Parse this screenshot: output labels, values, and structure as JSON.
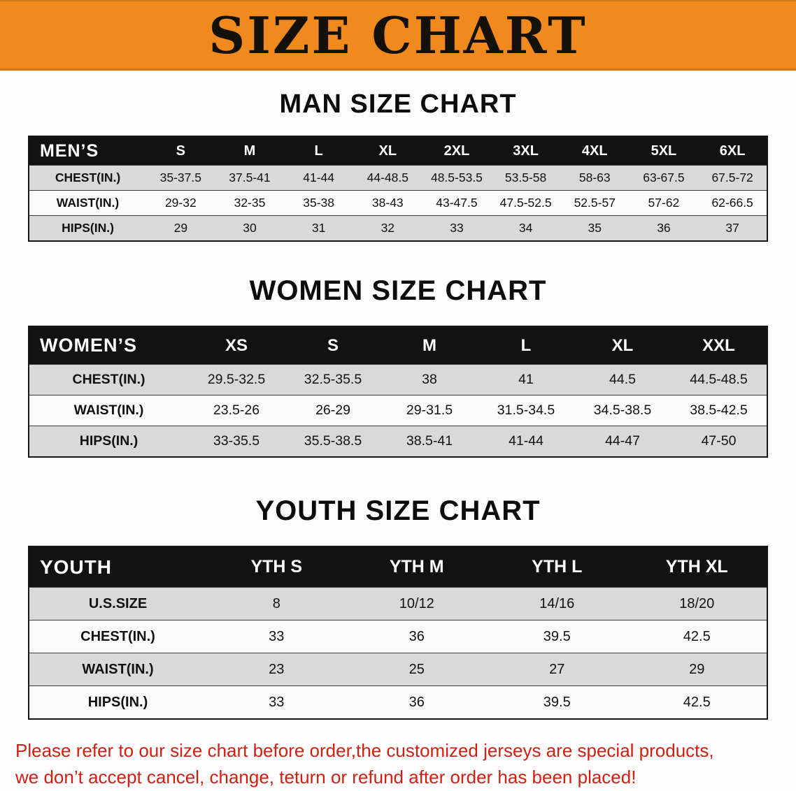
{
  "banner": {
    "title": "SIZE CHART",
    "bg_color": "#F18A1E"
  },
  "sections": [
    {
      "heading": "MAN SIZE CHART",
      "table": {
        "label": "MEN’S",
        "columns": [
          "S",
          "M",
          "L",
          "XL",
          "2XL",
          "3XL",
          "4XL",
          "5XL",
          "6XL"
        ],
        "rows": [
          {
            "label": "CHEST(IN.)",
            "values": [
              "35-37.5",
              "37.5-41",
              "41-44",
              "44-48.5",
              "48.5-53.5",
              "53.5-58",
              "58-63",
              "63-67.5",
              "67.5-72"
            ]
          },
          {
            "label": "WAIST(IN.)",
            "values": [
              "29-32",
              "32-35",
              "35-38",
              "38-43",
              "43-47.5",
              "47.5-52.5",
              "52.5-57",
              "57-62",
              "62-66.5"
            ]
          },
          {
            "label": "HIPS(IN.)",
            "values": [
              "29",
              "30",
              "31",
              "32",
              "33",
              "34",
              "35",
              "36",
              "37"
            ]
          }
        ]
      }
    },
    {
      "heading": "WOMEN SIZE CHART",
      "table": {
        "label": "WOMEN’S",
        "columns": [
          "XS",
          "S",
          "M",
          "L",
          "XL",
          "XXL"
        ],
        "rows": [
          {
            "label": "CHEST(IN.)",
            "values": [
              "29.5-32.5",
              "32.5-35.5",
              "38",
              "41",
              "44.5",
              "44.5-48.5"
            ]
          },
          {
            "label": "WAIST(IN.)",
            "values": [
              "23.5-26",
              "26-29",
              "29-31.5",
              "31.5-34.5",
              "34.5-38.5",
              "38.5-42.5"
            ]
          },
          {
            "label": "HIPS(IN.)",
            "values": [
              "33-35.5",
              "35.5-38.5",
              "38.5-41",
              "41-44",
              "44-47",
              "47-50"
            ]
          }
        ]
      }
    },
    {
      "heading": "YOUTH SIZE CHART",
      "table": {
        "label": "YOUTH",
        "columns": [
          "YTH S",
          "YTH M",
          "YTH L",
          "YTH XL"
        ],
        "rows": [
          {
            "label": "U.S.SIZE",
            "values": [
              "8",
              "10/12",
              "14/16",
              "18/20"
            ]
          },
          {
            "label": "CHEST(IN.)",
            "values": [
              "33",
              "36",
              "39.5",
              "42.5"
            ]
          },
          {
            "label": "WAIST(IN.)",
            "values": [
              "23",
              "25",
              "27",
              "29"
            ]
          },
          {
            "label": "HIPS(IN.)",
            "values": [
              "33",
              "36",
              "39.5",
              "42.5"
            ]
          }
        ]
      }
    }
  ],
  "disclaimer": {
    "line1": "Please refer to our size chart before order,the customized jerseys are special products,",
    "line2": "we don’t accept cancel, change, teturn or refund after order has been placed!",
    "color": "#D02014"
  }
}
